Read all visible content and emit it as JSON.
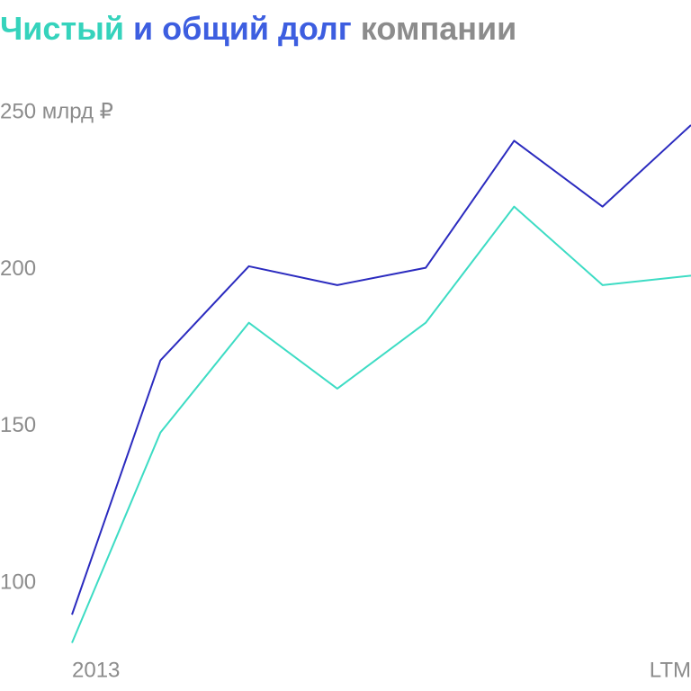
{
  "chart_data": {
    "type": "line",
    "title_parts": [
      {
        "text": "Чистый",
        "color": "#35d3bc"
      },
      {
        "text": "и общий долг",
        "color": "#3d5ee0"
      },
      {
        "text": "компании",
        "color": "#8c8c8c"
      }
    ],
    "categories": [
      "2013",
      null,
      null,
      null,
      null,
      null,
      null,
      "LTM"
    ],
    "series": [
      {
        "color": "#2b2bbf",
        "values": [
          90,
          171,
          201,
          195,
          200.5,
          241,
          220,
          246
        ]
      },
      {
        "color": "#3ddcc4",
        "values": [
          81,
          148,
          183,
          162,
          183,
          220,
          195,
          198
        ]
      }
    ],
    "ylim": [
      80,
      250
    ],
    "yticks": [
      {
        "value": 250,
        "label": "250 млрд ₽"
      },
      200,
      150,
      100
    ],
    "grid": false
  }
}
